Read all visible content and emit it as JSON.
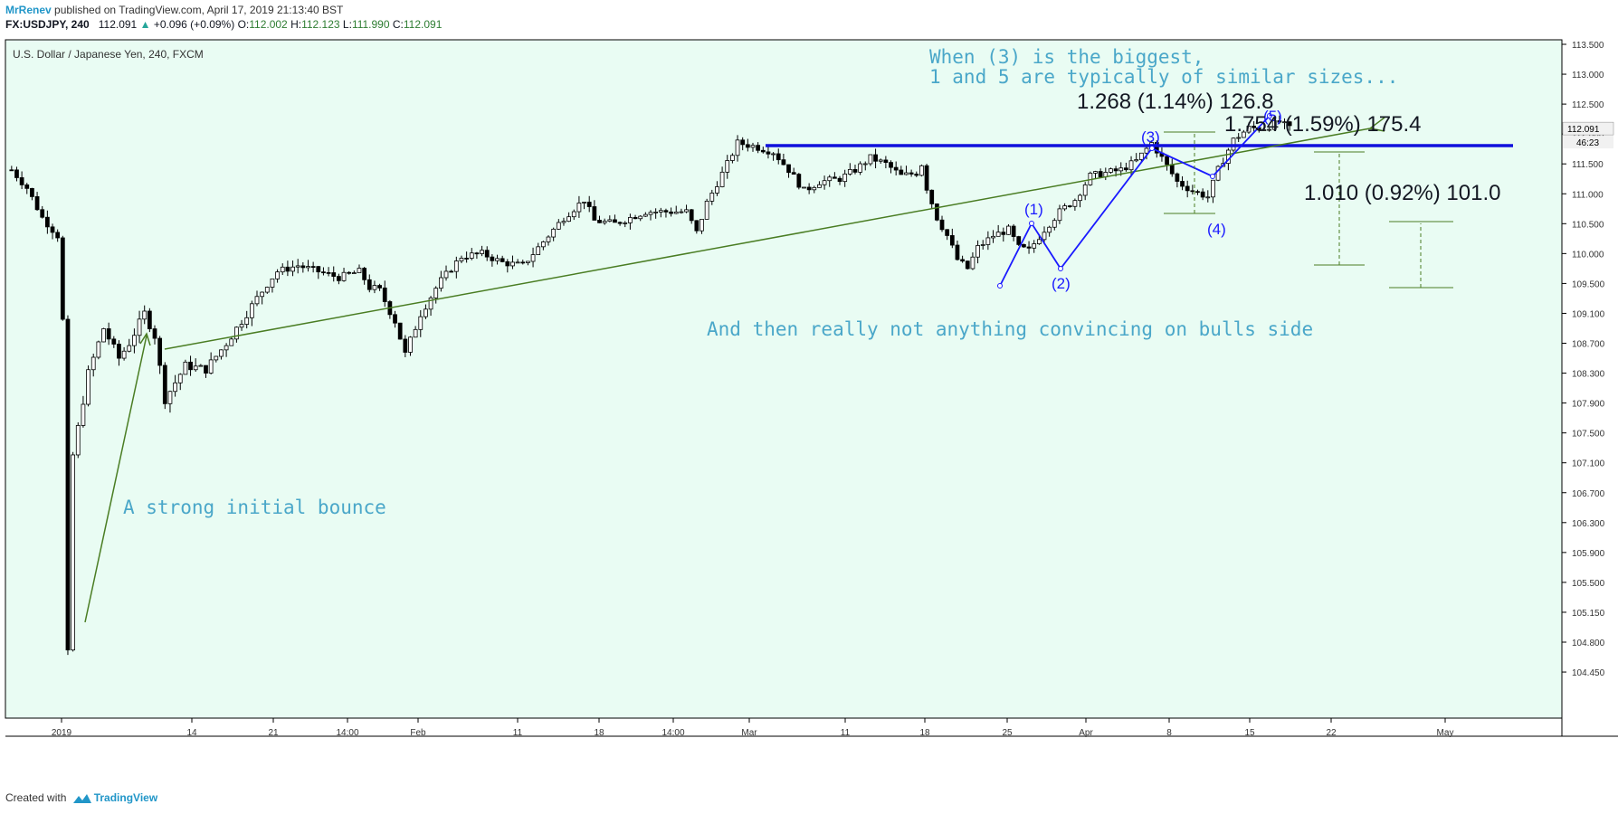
{
  "header": {
    "author": "MrRenev",
    "published": " published on TradingView.com, April 17, 2019 21:13:40 BST",
    "symbol": "FX:USDJPY, 240",
    "last": "112.091",
    "change": "+0.096 (+0.09%)",
    "o_label": "O:",
    "o_value": "112.002",
    "h_label": "H:",
    "h_value": "112.123",
    "l_label": "L:",
    "l_value": "111.990",
    "c_label": "C:",
    "c_value": "112.091"
  },
  "footer": {
    "created": "Created with",
    "brand": "TradingView"
  },
  "colors": {
    "background": "#e9fcf3",
    "annotation_text": "#4aa7c9",
    "wave": "#1a1aff",
    "trend": "#4a7d23",
    "bullet": "#1010dd",
    "candle_up": "#ffffff",
    "candle_down": "#000000"
  },
  "chart_data": {
    "type": "candlestick",
    "title": "U.S. Dollar / Japanese Yen, 240, FXCM",
    "y_ticks": [
      "113.500",
      "113.000",
      "112.500",
      "112.000",
      "111.500",
      "111.000",
      "110.500",
      "110.000",
      "109.500",
      "109.100",
      "108.700",
      "108.300",
      "107.900",
      "107.500",
      "107.100",
      "106.700",
      "106.300",
      "105.900",
      "105.500",
      "105.150",
      "104.800",
      "104.450"
    ],
    "x_ticks": [
      "2019",
      "14",
      "21",
      "14:00",
      "Feb",
      "11",
      "18",
      "14:00",
      "Mar",
      "11",
      "18",
      "25",
      "Apr",
      "8",
      "15",
      "22",
      "May"
    ],
    "price_marker": "112.091",
    "countdown": "46:23",
    "price_path": [
      [
        0,
        111.4
      ],
      [
        3,
        111.1
      ],
      [
        6,
        110.6
      ],
      [
        9,
        110.3
      ],
      [
        10,
        109.0
      ],
      [
        11,
        104.65
      ],
      [
        12,
        107.2
      ],
      [
        15,
        108.3
      ],
      [
        18,
        108.9
      ],
      [
        21,
        108.5
      ],
      [
        23,
        108.7
      ],
      [
        26,
        109.1
      ],
      [
        28,
        108.8
      ],
      [
        30,
        107.95
      ],
      [
        34,
        108.4
      ],
      [
        38,
        108.35
      ],
      [
        42,
        108.7
      ],
      [
        47,
        109.2
      ],
      [
        52,
        109.7
      ],
      [
        56,
        109.8
      ],
      [
        60,
        109.7
      ],
      [
        64,
        109.6
      ],
      [
        68,
        109.7
      ],
      [
        70,
        109.45
      ],
      [
        72,
        109.4
      ],
      [
        75,
        109.0
      ],
      [
        77,
        108.55
      ],
      [
        80,
        109.1
      ],
      [
        84,
        109.55
      ],
      [
        88,
        109.95
      ],
      [
        92,
        110.0
      ],
      [
        96,
        109.85
      ],
      [
        100,
        109.8
      ],
      [
        104,
        110.2
      ],
      [
        108,
        110.6
      ],
      [
        112,
        110.9
      ],
      [
        114,
        110.55
      ],
      [
        118,
        110.5
      ],
      [
        124,
        110.7
      ],
      [
        128,
        110.7
      ],
      [
        132,
        110.7
      ],
      [
        134,
        110.35
      ],
      [
        136,
        110.85
      ],
      [
        140,
        111.5
      ],
      [
        142,
        111.85
      ],
      [
        145,
        111.8
      ],
      [
        149,
        111.7
      ],
      [
        152,
        111.4
      ],
      [
        155,
        111.05
      ],
      [
        158,
        111.2
      ],
      [
        162,
        111.25
      ],
      [
        165,
        111.4
      ],
      [
        168,
        111.6
      ],
      [
        171,
        111.5
      ],
      [
        174,
        111.3
      ],
      [
        177,
        111.35
      ],
      [
        178,
        111.5
      ],
      [
        179,
        111.1
      ],
      [
        181,
        110.6
      ],
      [
        183,
        110.3
      ],
      [
        185,
        109.9
      ],
      [
        187,
        109.75
      ],
      [
        189,
        110.1
      ],
      [
        192,
        110.3
      ],
      [
        195,
        110.4
      ],
      [
        197,
        110.1
      ],
      [
        199,
        110.05
      ],
      [
        202,
        110.4
      ],
      [
        205,
        110.7
      ],
      [
        208,
        110.9
      ],
      [
        211,
        111.3
      ],
      [
        214,
        111.35
      ],
      [
        217,
        111.4
      ],
      [
        220,
        111.55
      ],
      [
        223,
        111.85
      ],
      [
        225,
        111.6
      ],
      [
        228,
        111.2
      ],
      [
        231,
        111.05
      ],
      [
        234,
        110.95
      ],
      [
        236,
        111.4
      ],
      [
        239,
        111.9
      ],
      [
        242,
        112.1
      ],
      [
        245,
        112.1
      ],
      [
        248,
        112.2
      ],
      [
        250,
        112.09
      ]
    ],
    "wave_labels": [
      "(1)",
      "(2)",
      "(3)",
      "(4)",
      "(5)"
    ],
    "measurements": [
      {
        "label": "1.268 (1.14%) 126.8"
      },
      {
        "label": "1.754 (1.59%) 175.4"
      },
      {
        "label": "1.010 (0.92%) 101.0"
      }
    ],
    "annotations": [
      "When (3) is the biggest,",
      "1 and 5 are typically of similar sizes...",
      "And then really not anything convincing on bulls side",
      "A strong initial bounce"
    ]
  }
}
